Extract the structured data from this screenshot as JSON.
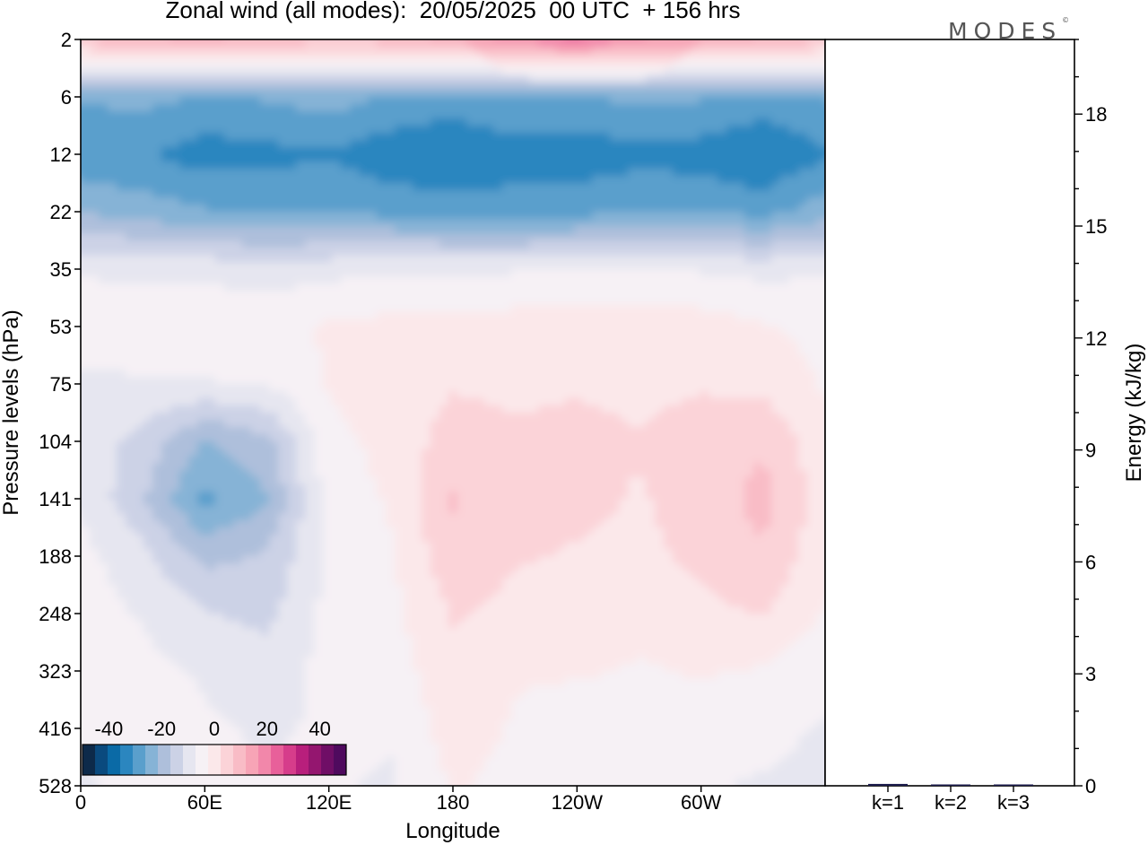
{
  "title": "Zonal wind (all modes):  20/05/2025  00 UTC  + 156 hrs",
  "logo": "MODES",
  "colors": {
    "neg": [
      "#0d2a4a",
      "#0a4a7e",
      "#0a6aa6",
      "#2b86bf",
      "#5a9fcc",
      "#86b3d6",
      "#aebfdb",
      "#ccd2e6",
      "#e6e6f0"
    ],
    "zero": "#f6f1f5",
    "pos": [
      "#fbe8ea",
      "#fbd3d8",
      "#f9bcc6",
      "#f7a4b6",
      "#f287aa",
      "#e8609a",
      "#d63d8b",
      "#b81f7c",
      "#94166f",
      "#6f0e66",
      "#4f0a5e"
    ]
  },
  "chart_data": [
    {
      "type": "heatmap",
      "title": "Zonal wind (all modes):  20/05/2025  00 UTC  + 156 hrs",
      "xlabel": "Longitude",
      "ylabel": "Pressure levels (hPa)",
      "x_ticks": [
        "0",
        "60E",
        "120E",
        "180",
        "120W",
        "60W"
      ],
      "x_tick_values": [
        0,
        60,
        120,
        180,
        240,
        300
      ],
      "xlim": [
        0,
        360
      ],
      "y_ticks": [
        "2",
        "6",
        "12",
        "22",
        "35",
        "53",
        "75",
        "104",
        "141",
        "188",
        "248",
        "323",
        "416",
        "528"
      ],
      "colorbar": {
        "ticks": [
          "-40",
          "-20",
          "0",
          "20",
          "40"
        ],
        "range": [
          -50,
          50
        ]
      },
      "levels": [
        2,
        6,
        12,
        22,
        35,
        53,
        75,
        104,
        141,
        188,
        248,
        323,
        416,
        528
      ],
      "longitudes": [
        0,
        30,
        60,
        90,
        120,
        150,
        180,
        210,
        240,
        270,
        300,
        330,
        360
      ],
      "values": [
        [
          14,
          17,
          18,
          16,
          14,
          15,
          19,
          24,
          28,
          23,
          20,
          17,
          14
        ],
        [
          -22,
          -21,
          -23,
          -22,
          -20,
          -23,
          -24,
          -22,
          -23,
          -21,
          -22,
          -24,
          -22
        ],
        [
          -26,
          -27,
          -30,
          -29,
          -28,
          -31,
          -33,
          -30,
          -31,
          -29,
          -30,
          -33,
          -28
        ],
        [
          -18,
          -20,
          -22,
          -23,
          -23,
          -24,
          -25,
          -25,
          -24,
          -23,
          -23,
          -24,
          -20
        ],
        [
          -3,
          -4,
          -4,
          -5,
          -4,
          -3,
          -3,
          -3,
          -3,
          -3,
          -3,
          -4,
          -3
        ],
        [
          1,
          1,
          2,
          1,
          3,
          4,
          4,
          5,
          5,
          6,
          5,
          3,
          1
        ],
        [
          -4,
          -3,
          -3,
          -2,
          3,
          5,
          7,
          6,
          7,
          6,
          7,
          6,
          2
        ],
        [
          -5,
          -9,
          -18,
          -14,
          1,
          4,
          10,
          9,
          9,
          8,
          10,
          12,
          4
        ],
        [
          -3,
          -12,
          -24,
          -18,
          0,
          3,
          13,
          10,
          9,
          7,
          10,
          14,
          5
        ],
        [
          -1,
          -6,
          -14,
          -12,
          -1,
          2,
          11,
          8,
          7,
          6,
          9,
          12,
          4
        ],
        [
          0,
          -3,
          -7,
          -9,
          -1,
          1,
          8,
          6,
          6,
          4,
          6,
          8,
          2
        ],
        [
          -1,
          -1,
          -3,
          -5,
          -1,
          0,
          6,
          3,
          3,
          2,
          3,
          2,
          -1
        ],
        [
          -2,
          -1,
          -2,
          -3,
          -2,
          -2,
          5,
          2,
          0,
          0,
          0,
          -1,
          -3
        ],
        [
          -3,
          -1,
          -2,
          -2,
          -2,
          -3,
          3,
          1,
          -2,
          -1,
          -2,
          -3,
          -4
        ]
      ]
    },
    {
      "type": "bar",
      "ylabel": "Energy (kJ/kg)",
      "categories": [
        "k=1",
        "k=2",
        "k=3"
      ],
      "values": [
        0.05,
        0.03,
        0.03
      ],
      "ylim": [
        0,
        20
      ],
      "y_ticks": [
        0,
        3,
        6,
        9,
        12,
        15,
        18
      ]
    }
  ]
}
